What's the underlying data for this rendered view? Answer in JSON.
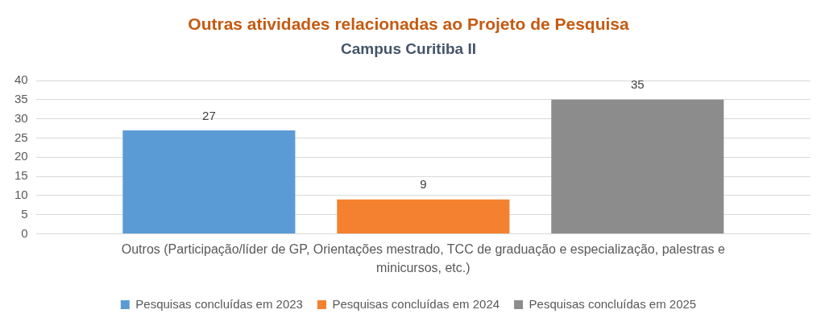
{
  "chart_data": {
    "type": "bar",
    "title": "Outras atividades relacionadas ao Projeto de Pesquisa",
    "subtitle": "Campus Curitiba II",
    "categories": [
      "Outros (Participação/líder de GP, Orientações mestrado, TCC de graduação e especialização, palestras e minicursos, etc.)"
    ],
    "series": [
      {
        "name": "Pesquisas concluídas em 2023",
        "color": "#5b9bd5",
        "values": [
          27
        ]
      },
      {
        "name": "Pesquisas concluídas em 2024",
        "color": "#f4812f",
        "values": [
          9
        ]
      },
      {
        "name": "Pesquisas concluídas em 2025",
        "color": "#8c8c8c",
        "values": [
          35
        ]
      }
    ],
    "ylim": [
      0,
      40
    ],
    "yticks": [
      0,
      5,
      10,
      15,
      20,
      25,
      30,
      35,
      40
    ],
    "grid": "y",
    "legend": "bottom",
    "data_labels": true
  }
}
